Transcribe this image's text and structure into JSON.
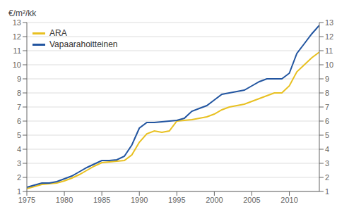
{
  "chart_data": {
    "type": "line",
    "ylabel": "€/m²/kk",
    "x": [
      1975,
      1976,
      1977,
      1978,
      1979,
      1980,
      1981,
      1982,
      1983,
      1984,
      1985,
      1986,
      1987,
      1988,
      1989,
      1990,
      1991,
      1992,
      1993,
      1994,
      1995,
      1996,
      1997,
      1998,
      1999,
      2000,
      2001,
      2002,
      2003,
      2004,
      2005,
      2006,
      2007,
      2008,
      2009,
      2010,
      2011,
      2012,
      2013,
      2014
    ],
    "series": [
      {
        "name": "ARA",
        "color": "#e8c020",
        "values": [
          1.2,
          1.35,
          1.5,
          1.55,
          1.6,
          1.75,
          1.95,
          2.2,
          2.5,
          2.8,
          3.05,
          3.1,
          3.15,
          3.2,
          3.6,
          4.5,
          5.1,
          5.3,
          5.2,
          5.3,
          6.0,
          6.05,
          6.1,
          6.2,
          6.3,
          6.5,
          6.8,
          7.0,
          7.1,
          7.2,
          7.4,
          7.6,
          7.8,
          8.0,
          8.0,
          8.5,
          9.5,
          10.0,
          10.5,
          10.9
        ]
      },
      {
        "name": "Vapaarahoitteinen",
        "color": "#2255a0",
        "values": [
          1.3,
          1.45,
          1.6,
          1.6,
          1.7,
          1.9,
          2.1,
          2.4,
          2.7,
          2.95,
          3.2,
          3.2,
          3.25,
          3.5,
          4.3,
          5.5,
          5.9,
          5.9,
          5.95,
          6.0,
          6.05,
          6.2,
          6.7,
          6.9,
          7.1,
          7.5,
          7.9,
          8.0,
          8.1,
          8.2,
          8.5,
          8.8,
          9.0,
          9.0,
          9.0,
          9.4,
          10.8,
          11.5,
          12.2,
          12.8
        ]
      }
    ],
    "xlim": [
      1975,
      2014
    ],
    "xticks": [
      1975,
      1980,
      1985,
      1990,
      1995,
      2000,
      2005,
      2010
    ],
    "ylim": [
      1,
      13
    ],
    "yticks": [
      1,
      2,
      3,
      4,
      5,
      6,
      7,
      8,
      9,
      10,
      11,
      12,
      13
    ],
    "y2lim": [
      1,
      13
    ],
    "y2ticks": [
      1,
      2,
      3,
      4,
      5,
      6,
      7,
      8,
      9,
      10,
      11,
      12,
      13
    ],
    "grid": true,
    "legend": "upper left"
  }
}
